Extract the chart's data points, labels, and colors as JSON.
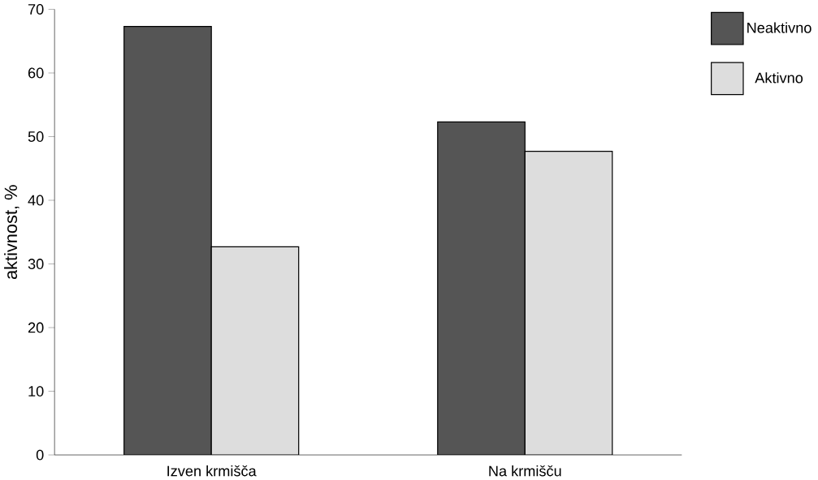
{
  "chart_data": {
    "type": "bar",
    "ylabel": "aktivnost, %",
    "categories": [
      "Izven krmišča",
      "Na krmišču"
    ],
    "series": [
      {
        "name": "Neaktivno",
        "color": "#555555",
        "values": [
          67.3,
          52.3
        ]
      },
      {
        "name": "Aktivno",
        "color": "#dddddd",
        "values": [
          32.7,
          47.7
        ]
      }
    ],
    "ylim": [
      0,
      70
    ],
    "yticks": [
      0,
      10,
      20,
      30,
      40,
      50,
      60,
      70
    ],
    "grid": false,
    "legend": "top right"
  }
}
